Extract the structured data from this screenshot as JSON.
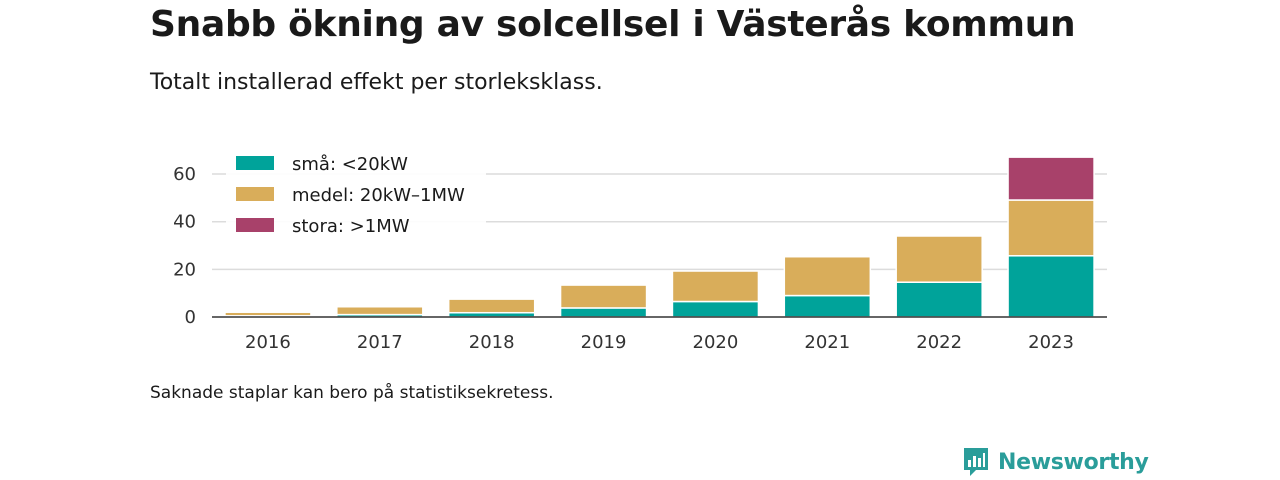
{
  "header": {
    "title": "Snabb ökning av solcellsel i Västerås kommun",
    "subtitle": "Totalt installerad effekt per storleksklass."
  },
  "footer": {
    "note": "Saknade staplar kan bero på statistiksekretess.",
    "brand": "Newsworthy"
  },
  "chart_data": {
    "type": "bar",
    "stacked": true,
    "categories": [
      "2016",
      "2017",
      "2018",
      "2019",
      "2020",
      "2021",
      "2022",
      "2023"
    ],
    "series": [
      {
        "name": "små: <20kW",
        "color": "#00a39a",
        "values": [
          0.5,
          1.0,
          1.8,
          3.8,
          6.5,
          9.0,
          14.6,
          25.7
        ]
      },
      {
        "name": "medel: 20kW–1MW",
        "color": "#d9ad5a",
        "values": [
          1.5,
          3.3,
          5.7,
          9.6,
          12.8,
          16.3,
          19.4,
          23.4
        ]
      },
      {
        "name": "stora: >1MW",
        "color": "#a8416a",
        "values": [
          0,
          0,
          0,
          0,
          0,
          0,
          0,
          18.0
        ]
      }
    ],
    "ylim": [
      0,
      68
    ],
    "yticks": [
      0,
      20,
      40,
      60
    ],
    "grid": true,
    "legend_position": "top-left"
  }
}
